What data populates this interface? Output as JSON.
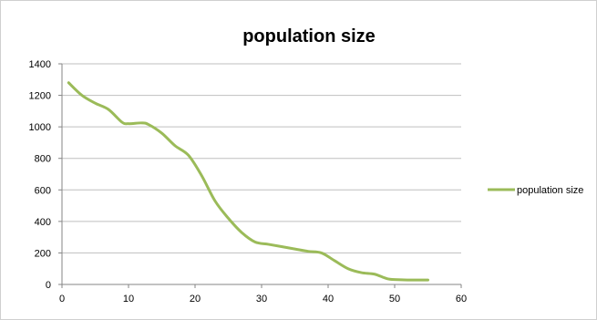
{
  "chart_data": {
    "type": "line",
    "title": "population size",
    "xlabel": "",
    "ylabel": "",
    "xlim": [
      0,
      60
    ],
    "ylim": [
      0,
      1400
    ],
    "x_ticks": [
      0,
      10,
      20,
      30,
      40,
      50,
      60
    ],
    "y_ticks": [
      0,
      200,
      400,
      600,
      800,
      1000,
      1200,
      1400
    ],
    "grid": "horizontal",
    "legend_position": "right",
    "series": [
      {
        "name": "population size",
        "color": "#9bbb59",
        "x": [
          1,
          3,
          5,
          7,
          9,
          10,
          12,
          13,
          15,
          17,
          19,
          21,
          23,
          25,
          27,
          29,
          31,
          33,
          35,
          37,
          39,
          41,
          43,
          45,
          47,
          49,
          51,
          53,
          55
        ],
        "y": [
          1280,
          1200,
          1150,
          1110,
          1030,
          1020,
          1025,
          1015,
          960,
          880,
          820,
          690,
          530,
          420,
          330,
          270,
          255,
          240,
          225,
          210,
          200,
          150,
          100,
          75,
          65,
          35,
          30,
          28,
          28
        ]
      }
    ]
  }
}
